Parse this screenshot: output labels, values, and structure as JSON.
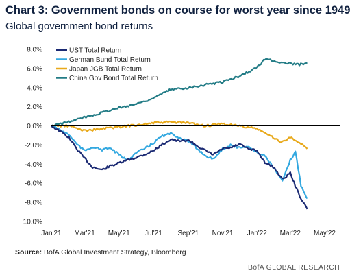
{
  "title": "Chart 3: Government bonds on course for worst year since 1949",
  "subtitle": "Global government bond returns",
  "source_label": "Source:",
  "source_text": "BofA Global Investment Strategy, Bloomberg",
  "footer": "BofA GLOBAL RESEARCH",
  "colors": {
    "ust": "#1b2a73",
    "bund": "#33a8e0",
    "jgb": "#e8a91b",
    "china": "#237c86",
    "zero_line": "#000000"
  },
  "chart_data": {
    "type": "line",
    "title": "Chart 3: Government bonds on course for worst year since 1949",
    "subtitle": "Global government bond returns",
    "xlabel": "",
    "ylabel": "",
    "x_ticks": [
      "Jan'21",
      "Mar'21",
      "May'21",
      "Jul'21",
      "Sep'21",
      "Nov'21",
      "Jan'22",
      "Mar'22",
      "May'22"
    ],
    "y_ticks": [
      "8.0%",
      "6.0%",
      "4.0%",
      "2.0%",
      "0.0%",
      "-2.0%",
      "-4.0%",
      "-6.0%",
      "-8.0%",
      "-10.0%"
    ],
    "ylim": [
      -10,
      8
    ],
    "xlim": [
      "2021-01-01",
      "2022-05-01"
    ],
    "grid": false,
    "legend_position": "top-left",
    "series": [
      {
        "name": "UST Total Return",
        "color": "#1b2a73",
        "points": [
          [
            "2021-01-01",
            0.0
          ],
          [
            "2021-01-15",
            -0.5
          ],
          [
            "2021-02-01",
            -1.2
          ],
          [
            "2021-02-15",
            -2.4
          ],
          [
            "2021-03-01",
            -3.4
          ],
          [
            "2021-03-15",
            -4.3
          ],
          [
            "2021-04-01",
            -4.6
          ],
          [
            "2021-04-15",
            -4.2
          ],
          [
            "2021-05-01",
            -3.9
          ],
          [
            "2021-05-15",
            -3.6
          ],
          [
            "2021-06-01",
            -3.3
          ],
          [
            "2021-06-15",
            -3.0
          ],
          [
            "2021-07-01",
            -2.6
          ],
          [
            "2021-07-15",
            -2.0
          ],
          [
            "2021-08-01",
            -1.4
          ],
          [
            "2021-08-15",
            -1.6
          ],
          [
            "2021-09-01",
            -1.5
          ],
          [
            "2021-09-15",
            -2.0
          ],
          [
            "2021-10-01",
            -2.6
          ],
          [
            "2021-10-15",
            -3.0
          ],
          [
            "2021-11-01",
            -2.4
          ],
          [
            "2021-11-15",
            -2.3
          ],
          [
            "2021-12-01",
            -1.9
          ],
          [
            "2021-12-15",
            -2.4
          ],
          [
            "2022-01-01",
            -2.6
          ],
          [
            "2022-01-15",
            -3.8
          ],
          [
            "2022-02-01",
            -4.4
          ],
          [
            "2022-02-15",
            -5.6
          ],
          [
            "2022-03-01",
            -4.9
          ],
          [
            "2022-03-10",
            -6.3
          ],
          [
            "2022-03-20",
            -7.6
          ],
          [
            "2022-03-31",
            -8.7
          ]
        ]
      },
      {
        "name": "German Bund Total Return",
        "color": "#33a8e0",
        "points": [
          [
            "2021-01-01",
            0.0
          ],
          [
            "2021-01-15",
            -0.4
          ],
          [
            "2021-02-01",
            -0.9
          ],
          [
            "2021-02-15",
            -1.9
          ],
          [
            "2021-03-01",
            -2.6
          ],
          [
            "2021-03-15",
            -2.2
          ],
          [
            "2021-04-01",
            -2.5
          ],
          [
            "2021-04-15",
            -2.3
          ],
          [
            "2021-05-01",
            -3.0
          ],
          [
            "2021-05-15",
            -3.6
          ],
          [
            "2021-06-01",
            -2.8
          ],
          [
            "2021-06-15",
            -2.4
          ],
          [
            "2021-07-01",
            -1.8
          ],
          [
            "2021-07-15",
            -1.1
          ],
          [
            "2021-08-01",
            -0.8
          ],
          [
            "2021-08-15",
            -1.2
          ],
          [
            "2021-09-01",
            -1.6
          ],
          [
            "2021-09-15",
            -2.3
          ],
          [
            "2021-10-01",
            -3.1
          ],
          [
            "2021-10-15",
            -3.5
          ],
          [
            "2021-11-01",
            -2.4
          ],
          [
            "2021-11-15",
            -2.0
          ],
          [
            "2021-12-01",
            -2.3
          ],
          [
            "2021-12-15",
            -2.1
          ],
          [
            "2022-01-01",
            -2.8
          ],
          [
            "2022-01-15",
            -3.1
          ],
          [
            "2022-02-01",
            -4.5
          ],
          [
            "2022-02-15",
            -5.8
          ],
          [
            "2022-03-01",
            -3.6
          ],
          [
            "2022-03-10",
            -2.7
          ],
          [
            "2022-03-20",
            -6.2
          ],
          [
            "2022-03-31",
            -7.6
          ]
        ]
      },
      {
        "name": "Japan JGB Total Return",
        "color": "#e8a91b",
        "points": [
          [
            "2021-01-01",
            0.0
          ],
          [
            "2021-02-01",
            0.0
          ],
          [
            "2021-03-01",
            -0.5
          ],
          [
            "2021-04-01",
            -0.3
          ],
          [
            "2021-05-01",
            -0.1
          ],
          [
            "2021-06-01",
            0.1
          ],
          [
            "2021-07-01",
            0.3
          ],
          [
            "2021-08-01",
            0.4
          ],
          [
            "2021-09-01",
            0.3
          ],
          [
            "2021-10-01",
            0.0
          ],
          [
            "2021-11-01",
            0.2
          ],
          [
            "2021-12-01",
            0.0
          ],
          [
            "2022-01-01",
            -0.3
          ],
          [
            "2022-02-01",
            -1.3
          ],
          [
            "2022-02-15",
            -1.7
          ],
          [
            "2022-03-01",
            -1.2
          ],
          [
            "2022-03-15",
            -1.6
          ],
          [
            "2022-03-31",
            -2.4
          ]
        ]
      },
      {
        "name": "China Gov Bond Total Return",
        "color": "#237c86",
        "points": [
          [
            "2021-01-01",
            0.0
          ],
          [
            "2021-02-01",
            0.4
          ],
          [
            "2021-03-01",
            0.9
          ],
          [
            "2021-04-01",
            1.4
          ],
          [
            "2021-05-01",
            1.9
          ],
          [
            "2021-06-01",
            2.3
          ],
          [
            "2021-07-01",
            2.9
          ],
          [
            "2021-08-01",
            3.8
          ],
          [
            "2021-09-01",
            4.0
          ],
          [
            "2021-10-01",
            4.3
          ],
          [
            "2021-11-01",
            4.6
          ],
          [
            "2021-12-01",
            5.2
          ],
          [
            "2022-01-01",
            6.1
          ],
          [
            "2022-01-15",
            7.0
          ],
          [
            "2022-02-01",
            6.8
          ],
          [
            "2022-02-15",
            6.6
          ],
          [
            "2022-03-01",
            6.5
          ],
          [
            "2022-03-15",
            6.4
          ],
          [
            "2022-03-31",
            6.6
          ]
        ]
      }
    ]
  }
}
